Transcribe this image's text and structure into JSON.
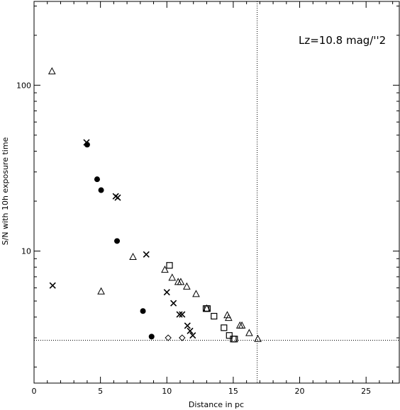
{
  "chart_data": {
    "type": "scatter",
    "title": "",
    "annotation": "Lz=10.8 mag/''2",
    "xlabel": "Distance in pc",
    "ylabel": "S/N with 10h exposure time",
    "xlim": [
      0,
      27.5
    ],
    "ylim": [
      1.6,
      320
    ],
    "yscale": "log",
    "x_ticks": [
      0,
      5,
      10,
      15,
      20,
      25
    ],
    "x_tick_labels": [
      "0",
      "5",
      "10",
      "15",
      "20",
      "25"
    ],
    "y_ticks": [
      10,
      100
    ],
    "y_tick_labels": [
      "10",
      "100"
    ],
    "grid": false,
    "reference_lines": {
      "vertical_x": 16.8,
      "horizontal_y": 2.9
    },
    "series": [
      {
        "marker": "circle",
        "points": [
          [
            4.0,
            43.8
          ],
          [
            4.75,
            27.1
          ],
          [
            5.05,
            23.3
          ],
          [
            6.25,
            11.5
          ],
          [
            8.2,
            4.35
          ],
          [
            8.85,
            3.05
          ]
        ]
      },
      {
        "marker": "x",
        "points": [
          [
            1.4,
            6.2
          ],
          [
            3.95,
            45.2
          ],
          [
            6.15,
            21.4
          ],
          [
            6.3,
            21.0
          ],
          [
            8.45,
            9.55
          ],
          [
            10.0,
            5.65
          ],
          [
            10.5,
            4.85
          ],
          [
            10.95,
            4.15
          ],
          [
            11.15,
            4.15
          ],
          [
            11.55,
            3.55
          ],
          [
            11.75,
            3.3
          ],
          [
            11.95,
            3.1
          ]
        ]
      },
      {
        "marker": "triangle",
        "points": [
          [
            1.35,
            121
          ],
          [
            5.05,
            5.7
          ],
          [
            7.45,
            9.2
          ],
          [
            9.85,
            7.7
          ],
          [
            10.4,
            6.9
          ],
          [
            10.85,
            6.5
          ],
          [
            11.05,
            6.5
          ],
          [
            11.5,
            6.1
          ],
          [
            12.2,
            5.5
          ],
          [
            13.0,
            4.5
          ],
          [
            14.55,
            4.1
          ],
          [
            14.65,
            3.95
          ],
          [
            15.5,
            3.55
          ],
          [
            15.65,
            3.55
          ],
          [
            16.2,
            3.2
          ],
          [
            16.85,
            2.95
          ]
        ]
      },
      {
        "marker": "square",
        "points": [
          [
            10.2,
            8.2
          ],
          [
            12.95,
            4.5
          ],
          [
            13.05,
            4.5
          ],
          [
            13.55,
            4.05
          ],
          [
            14.3,
            3.45
          ],
          [
            14.7,
            3.1
          ],
          [
            15.0,
            2.95
          ],
          [
            15.1,
            2.95
          ]
        ]
      },
      {
        "marker": "diamond",
        "points": [
          [
            10.1,
            3.0
          ],
          [
            11.15,
            3.0
          ]
        ]
      }
    ]
  }
}
